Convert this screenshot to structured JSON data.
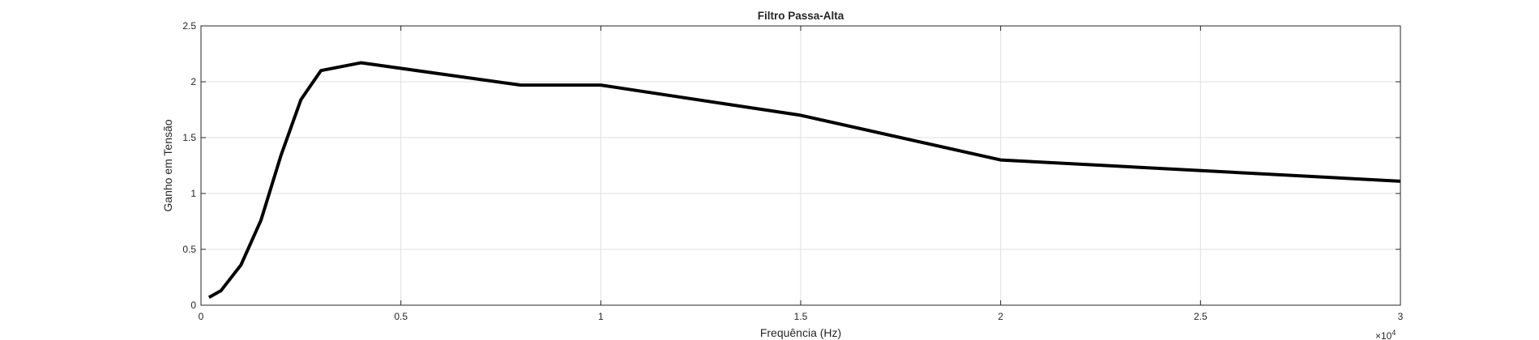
{
  "chart_data": {
    "type": "line",
    "title": "Filtro Passa-Alta",
    "xlabel": "Frequência (Hz)",
    "ylabel": "Ganho em Tensão",
    "x_exponent_label": "×10",
    "x_exponent_power": "4",
    "xlim": [
      0,
      30000
    ],
    "ylim": [
      0,
      2.5
    ],
    "x_tick_values": [
      0,
      5000,
      10000,
      15000,
      20000,
      25000,
      30000
    ],
    "x_tick_labels": [
      "0",
      "0.5",
      "1",
      "1.5",
      "2",
      "2.5",
      "3"
    ],
    "y_tick_values": [
      0,
      0.5,
      1,
      1.5,
      2,
      2.5
    ],
    "y_tick_labels": [
      "0",
      "0.5",
      "1",
      "1.5",
      "2",
      "2.5"
    ],
    "grid": true,
    "box": true,
    "series": [
      {
        "color": "#000000",
        "x": [
          200,
          500,
          1000,
          1500,
          2000,
          2500,
          3000,
          4000,
          8000,
          10000,
          15000,
          20000,
          30000
        ],
        "y": [
          0.07,
          0.13,
          0.36,
          0.76,
          1.34,
          1.84,
          2.1,
          2.17,
          1.97,
          1.97,
          1.7,
          1.3,
          1.11
        ]
      }
    ],
    "colors": {
      "axis": "#262626",
      "grid": "#dfdfdf",
      "line": "#000000"
    }
  }
}
